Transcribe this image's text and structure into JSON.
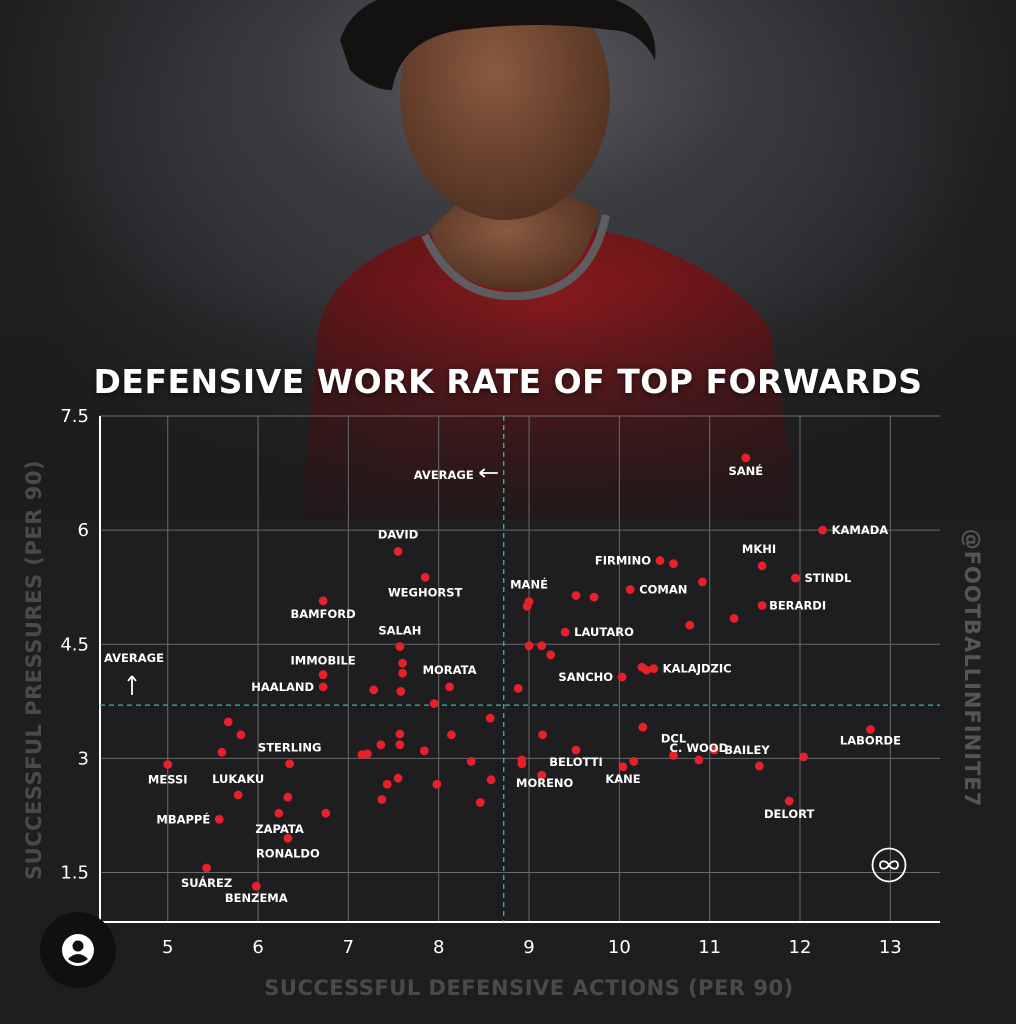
{
  "title": "DEFENSIVE WORK RATE OF TOP FORWARDS",
  "credit": "@FOOTBALLINFINITE7",
  "colors": {
    "point": "#e8202a",
    "grid": "#6a6a6c",
    "average_line": "#3fb6a8",
    "text": "#ffffff",
    "axis_label": "#4a4a4d"
  },
  "icons": {
    "logo": "infinity-icon",
    "profile": "user-icon"
  },
  "chart_data": {
    "type": "scatter",
    "xlabel": "SUCCESSFUL DEFENSIVE ACTIONS (PER 90)",
    "ylabel": "SUCCESSFUL PRESSURES (PER 90)",
    "xlim": [
      4.25,
      13.55
    ],
    "ylim": [
      0.85,
      7.5
    ],
    "xticks": [
      5,
      6,
      7,
      8,
      9,
      10,
      11,
      12,
      13
    ],
    "yticks": [
      1.5,
      3,
      4.5,
      6,
      7.5
    ],
    "ytick_labels": [
      "1.5",
      "3",
      "4.5",
      "6",
      "7.5"
    ],
    "grid": true,
    "averages": {
      "x": 8.72,
      "y": 3.7
    },
    "average_labels": {
      "x": "AVERAGE",
      "y": "AVERAGE"
    },
    "points": [
      {
        "x": 11.4,
        "y": 6.95,
        "label": "SANÉ"
      },
      {
        "x": 12.25,
        "y": 6.0,
        "label": "KAMADA"
      },
      {
        "x": 7.55,
        "y": 5.72,
        "label": "DAVID"
      },
      {
        "x": 7.85,
        "y": 5.38,
        "label": "WEGHORST"
      },
      {
        "x": 10.45,
        "y": 5.6,
        "label": "FIRMINO"
      },
      {
        "x": 11.58,
        "y": 5.53,
        "label": "MKHI"
      },
      {
        "x": 11.95,
        "y": 5.37,
        "label": "STINDL"
      },
      {
        "x": 10.12,
        "y": 5.22,
        "label": "COMAN"
      },
      {
        "x": 11.58,
        "y": 5.01,
        "label": "BERARDI"
      },
      {
        "x": 6.72,
        "y": 5.07,
        "label": "BAMFORD"
      },
      {
        "x": 9.0,
        "y": 5.06,
        "label": "MANÉ"
      },
      {
        "x": 7.57,
        "y": 4.47,
        "label": "SALAH"
      },
      {
        "x": 9.4,
        "y": 4.66,
        "label": "LAUTARO"
      },
      {
        "x": 6.72,
        "y": 4.1,
        "label": "IMMOBILE"
      },
      {
        "x": 6.72,
        "y": 3.94,
        "label": "HAALAND"
      },
      {
        "x": 8.12,
        "y": 3.94,
        "label": "MORATA"
      },
      {
        "x": 10.38,
        "y": 4.18,
        "label": "KALAJDZIC"
      },
      {
        "x": 10.03,
        "y": 4.07,
        "label": "SANCHO"
      },
      {
        "x": 12.78,
        "y": 3.38,
        "label": "LABORDE"
      },
      {
        "x": 6.35,
        "y": 2.93,
        "label": "STERLING"
      },
      {
        "x": 5.0,
        "y": 2.92,
        "label": "MESSI"
      },
      {
        "x": 10.6,
        "y": 3.04,
        "label": "DCL"
      },
      {
        "x": 11.05,
        "y": 3.11,
        "label": "BAILEY"
      },
      {
        "x": 9.52,
        "y": 3.11,
        "label": "BELOTTI"
      },
      {
        "x": 5.78,
        "y": 2.52,
        "label": "LUKAKU"
      },
      {
        "x": 10.88,
        "y": 2.98,
        "label": "C. WOOD"
      },
      {
        "x": 10.04,
        "y": 2.89,
        "label": "KANE"
      },
      {
        "x": 9.14,
        "y": 2.78,
        "label": "MORENO"
      },
      {
        "x": 6.75,
        "y": 2.28,
        "label": "ZAPATA"
      },
      {
        "x": 11.88,
        "y": 2.44,
        "label": "DELORT"
      },
      {
        "x": 5.57,
        "y": 2.2,
        "label": "MBAPPÉ"
      },
      {
        "x": 6.33,
        "y": 1.95,
        "label": "RONALDO"
      },
      {
        "x": 5.43,
        "y": 1.56,
        "label": "SUÁREZ"
      },
      {
        "x": 5.98,
        "y": 1.32,
        "label": "BENZEMA"
      },
      {
        "x": 9.72,
        "y": 5.12,
        "label": ""
      },
      {
        "x": 9.52,
        "y": 5.14,
        "label": ""
      },
      {
        "x": 10.6,
        "y": 5.56,
        "label": ""
      },
      {
        "x": 10.92,
        "y": 5.32,
        "label": ""
      },
      {
        "x": 11.27,
        "y": 4.84,
        "label": ""
      },
      {
        "x": 10.78,
        "y": 4.75,
        "label": ""
      },
      {
        "x": 8.98,
        "y": 5.0,
        "label": ""
      },
      {
        "x": 9.14,
        "y": 4.48,
        "label": ""
      },
      {
        "x": 9.0,
        "y": 4.48,
        "label": ""
      },
      {
        "x": 9.24,
        "y": 4.36,
        "label": ""
      },
      {
        "x": 10.25,
        "y": 4.2,
        "label": ""
      },
      {
        "x": 10.3,
        "y": 4.16,
        "label": ""
      },
      {
        "x": 7.6,
        "y": 4.25,
        "label": ""
      },
      {
        "x": 7.6,
        "y": 4.12,
        "label": ""
      },
      {
        "x": 7.28,
        "y": 3.9,
        "label": ""
      },
      {
        "x": 7.58,
        "y": 3.88,
        "label": ""
      },
      {
        "x": 8.88,
        "y": 3.92,
        "label": ""
      },
      {
        "x": 7.95,
        "y": 3.72,
        "label": ""
      },
      {
        "x": 8.57,
        "y": 3.53,
        "label": ""
      },
      {
        "x": 5.67,
        "y": 3.48,
        "label": ""
      },
      {
        "x": 5.81,
        "y": 3.31,
        "label": ""
      },
      {
        "x": 5.6,
        "y": 3.08,
        "label": ""
      },
      {
        "x": 7.57,
        "y": 3.32,
        "label": ""
      },
      {
        "x": 7.57,
        "y": 3.18,
        "label": ""
      },
      {
        "x": 7.36,
        "y": 3.18,
        "label": ""
      },
      {
        "x": 7.21,
        "y": 3.06,
        "label": ""
      },
      {
        "x": 7.15,
        "y": 3.05,
        "label": ""
      },
      {
        "x": 7.84,
        "y": 3.1,
        "label": ""
      },
      {
        "x": 8.14,
        "y": 3.31,
        "label": ""
      },
      {
        "x": 9.15,
        "y": 3.31,
        "label": ""
      },
      {
        "x": 10.26,
        "y": 3.41,
        "label": ""
      },
      {
        "x": 8.92,
        "y": 2.98,
        "label": ""
      },
      {
        "x": 8.92,
        "y": 2.93,
        "label": ""
      },
      {
        "x": 8.36,
        "y": 2.96,
        "label": ""
      },
      {
        "x": 10.16,
        "y": 2.96,
        "label": ""
      },
      {
        "x": 11.55,
        "y": 2.9,
        "label": ""
      },
      {
        "x": 12.04,
        "y": 3.02,
        "label": ""
      },
      {
        "x": 7.55,
        "y": 2.74,
        "label": ""
      },
      {
        "x": 7.43,
        "y": 2.66,
        "label": ""
      },
      {
        "x": 7.98,
        "y": 2.66,
        "label": ""
      },
      {
        "x": 8.58,
        "y": 2.72,
        "label": ""
      },
      {
        "x": 7.37,
        "y": 2.46,
        "label": ""
      },
      {
        "x": 8.46,
        "y": 2.42,
        "label": ""
      },
      {
        "x": 6.33,
        "y": 2.49,
        "label": ""
      },
      {
        "x": 6.23,
        "y": 2.28,
        "label": ""
      }
    ]
  }
}
